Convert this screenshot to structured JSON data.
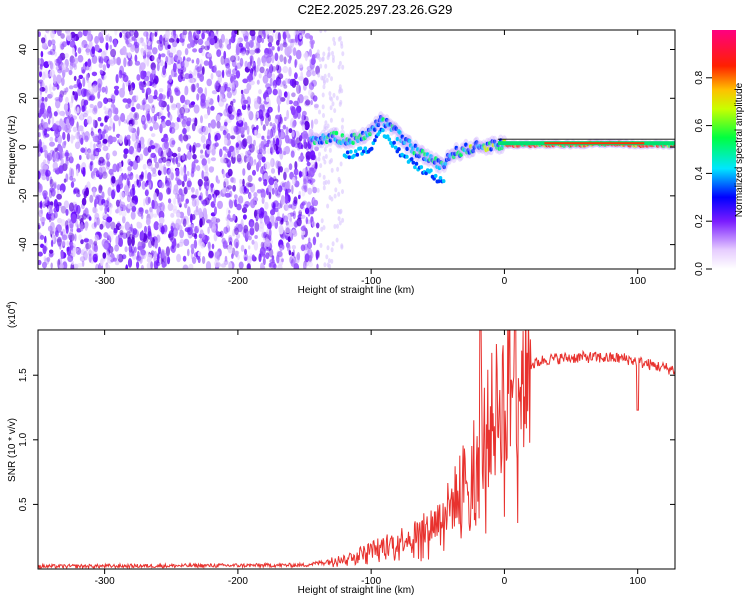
{
  "title": "C2E2.2025.297.23.26.G29",
  "chart_data": [
    {
      "type": "heatmap",
      "name": "spectrogram",
      "xlabel": "Height of straight line (km)",
      "ylabel": "Frequency (Hz)",
      "xlim": [
        -350,
        128
      ],
      "ylim": [
        -50,
        48
      ],
      "xticks": [
        -300,
        -200,
        -100,
        0,
        100
      ],
      "yticks": [
        -40,
        -20,
        0,
        20,
        40
      ],
      "noise_region_end": -140,
      "signal_track": {
        "x": [
          -145,
          -130,
          -115,
          -100,
          -92,
          -85,
          -75,
          -65,
          -55,
          -48,
          -40,
          -30,
          -20,
          -10,
          0,
          20,
          50,
          80,
          100,
          128
        ],
        "y": [
          3,
          4,
          3,
          6,
          12,
          8,
          2,
          -2,
          -5,
          -8,
          -3,
          -1,
          0,
          1,
          1,
          1,
          1,
          1.5,
          1,
          1
        ]
      },
      "colorbar": {
        "label": "Normalized spectral amplitude",
        "range": [
          0,
          1
        ],
        "ticks": [
          0.0,
          0.2,
          0.4,
          0.6,
          0.8
        ]
      }
    },
    {
      "type": "line",
      "name": "snr",
      "xlabel": "Height of straight line (km)",
      "ylabel": "SNR (10 * v/v)",
      "y_multiplier": "(x10",
      "y_multiplier_exp": "4",
      "xlim": [
        -350,
        128
      ],
      "ylim": [
        0,
        18500
      ],
      "xticks": [
        -300,
        -200,
        -100,
        0,
        100
      ],
      "yticks": [
        0.5,
        1.0,
        1.5
      ],
      "series_color": "#e8322e",
      "trend": {
        "x": [
          -350,
          -150,
          -120,
          -100,
          -80,
          -60,
          -50,
          -40,
          -30,
          -20,
          -10,
          0,
          10,
          20,
          30,
          40,
          60,
          90,
          110,
          128
        ],
        "y": [
          200,
          300,
          800,
          1500,
          2200,
          3000,
          3800,
          5000,
          7000,
          9000,
          11500,
          13500,
          15000,
          15800,
          16200,
          16300,
          16400,
          16300,
          15800,
          15400
        ]
      }
    }
  ]
}
